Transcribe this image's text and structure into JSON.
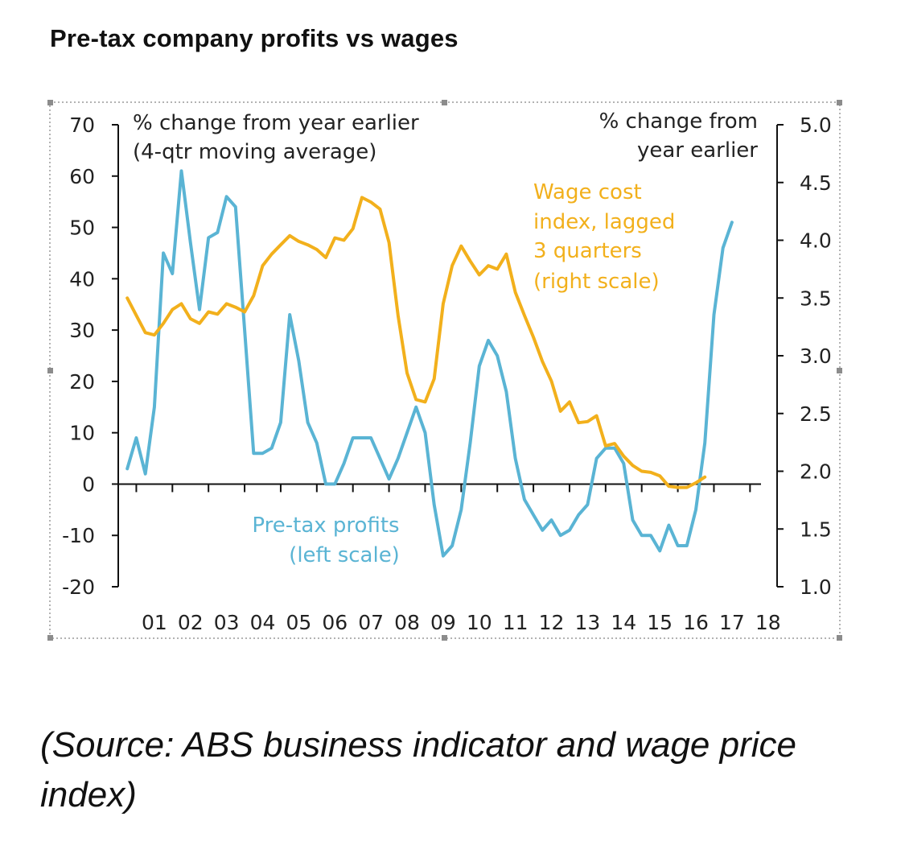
{
  "title": "Pre-tax company profits vs wages",
  "source": "(Source: ABS business indicator and wage price index)",
  "chart_data": {
    "type": "line",
    "left_axis": {
      "note_line1": "% change from year earlier",
      "note_line2": "(4-qtr moving average)",
      "ylim": [
        -20,
        70
      ],
      "ticks": [
        "70",
        "60",
        "50",
        "40",
        "30",
        "20",
        "10",
        "0",
        "-10",
        "-20"
      ]
    },
    "right_axis": {
      "note_line1": "% change from",
      "note_line2": "year earlier",
      "ylim": [
        1.0,
        5.0
      ],
      "ticks": [
        "5.0",
        "4.5",
        "4.0",
        "3.5",
        "3.0",
        "2.5",
        "2.0",
        "1.5",
        "1.0"
      ]
    },
    "x_tick_labels": [
      "01",
      "02",
      "03",
      "04",
      "05",
      "06",
      "07",
      "08",
      "09",
      "10",
      "11",
      "12",
      "13",
      "14",
      "15",
      "16",
      "17",
      "18"
    ],
    "series": [
      {
        "id": "profits",
        "label_line1": "Pre-tax profits",
        "label_line2": "(left scale)",
        "color": "#5ab4d4",
        "axis": "left",
        "points": [
          [
            2000.75,
            3
          ],
          [
            2001.0,
            9
          ],
          [
            2001.25,
            2
          ],
          [
            2001.5,
            15
          ],
          [
            2001.75,
            45
          ],
          [
            2002.0,
            41
          ],
          [
            2002.25,
            61
          ],
          [
            2002.5,
            47
          ],
          [
            2002.75,
            34
          ],
          [
            2003.0,
            48
          ],
          [
            2003.25,
            49
          ],
          [
            2003.5,
            56
          ],
          [
            2003.75,
            54
          ],
          [
            2004.0,
            30
          ],
          [
            2004.25,
            6
          ],
          [
            2004.5,
            6
          ],
          [
            2004.75,
            7
          ],
          [
            2005.0,
            12
          ],
          [
            2005.25,
            33
          ],
          [
            2005.5,
            24
          ],
          [
            2005.75,
            12
          ],
          [
            2006.0,
            8
          ],
          [
            2006.25,
            0
          ],
          [
            2006.5,
            0
          ],
          [
            2006.75,
            4
          ],
          [
            2007.0,
            9
          ],
          [
            2007.25,
            9
          ],
          [
            2007.5,
            9
          ],
          [
            2007.75,
            5
          ],
          [
            2008.0,
            1
          ],
          [
            2008.25,
            5
          ],
          [
            2008.5,
            10
          ],
          [
            2008.75,
            15
          ],
          [
            2009.0,
            10
          ],
          [
            2009.25,
            -4
          ],
          [
            2009.5,
            -14
          ],
          [
            2009.75,
            -12
          ],
          [
            2010.0,
            -5
          ],
          [
            2010.25,
            8
          ],
          [
            2010.5,
            23
          ],
          [
            2010.75,
            28
          ],
          [
            2011.0,
            25
          ],
          [
            2011.25,
            18
          ],
          [
            2011.5,
            5
          ],
          [
            2011.75,
            -3
          ],
          [
            2012.0,
            -6
          ],
          [
            2012.25,
            -9
          ],
          [
            2012.5,
            -7
          ],
          [
            2012.75,
            -10
          ],
          [
            2013.0,
            -9
          ],
          [
            2013.25,
            -6
          ],
          [
            2013.5,
            -4
          ],
          [
            2013.75,
            5
          ],
          [
            2014.0,
            7
          ],
          [
            2014.25,
            7
          ],
          [
            2014.5,
            4
          ],
          [
            2014.75,
            -7
          ],
          [
            2015.0,
            -10
          ],
          [
            2015.25,
            -10
          ],
          [
            2015.5,
            -13
          ],
          [
            2015.75,
            -8
          ],
          [
            2016.0,
            -12
          ],
          [
            2016.25,
            -12
          ],
          [
            2016.5,
            -5
          ],
          [
            2016.75,
            8
          ],
          [
            2017.0,
            33
          ],
          [
            2017.25,
            46
          ],
          [
            2017.5,
            51
          ]
        ]
      },
      {
        "id": "wages",
        "label_line1": "Wage cost",
        "label_line2": "index, lagged",
        "label_line3": "3 quarters",
        "label_line4": "(right scale)",
        "color": "#f2b01c",
        "axis": "right",
        "points": [
          [
            2000.75,
            3.5
          ],
          [
            2001.0,
            3.35
          ],
          [
            2001.25,
            3.2
          ],
          [
            2001.5,
            3.18
          ],
          [
            2001.75,
            3.28
          ],
          [
            2002.0,
            3.4
          ],
          [
            2002.25,
            3.45
          ],
          [
            2002.5,
            3.32
          ],
          [
            2002.75,
            3.28
          ],
          [
            2003.0,
            3.38
          ],
          [
            2003.25,
            3.36
          ],
          [
            2003.5,
            3.45
          ],
          [
            2003.75,
            3.42
          ],
          [
            2004.0,
            3.38
          ],
          [
            2004.25,
            3.52
          ],
          [
            2004.5,
            3.78
          ],
          [
            2004.75,
            3.88
          ],
          [
            2005.0,
            3.96
          ],
          [
            2005.25,
            4.04
          ],
          [
            2005.5,
            3.99
          ],
          [
            2005.75,
            3.96
          ],
          [
            2006.0,
            3.92
          ],
          [
            2006.25,
            3.85
          ],
          [
            2006.5,
            4.02
          ],
          [
            2006.75,
            4.0
          ],
          [
            2007.0,
            4.1
          ],
          [
            2007.25,
            4.37
          ],
          [
            2007.5,
            4.33
          ],
          [
            2007.75,
            4.27
          ],
          [
            2008.0,
            3.98
          ],
          [
            2008.25,
            3.35
          ],
          [
            2008.5,
            2.85
          ],
          [
            2008.75,
            2.62
          ],
          [
            2009.0,
            2.6
          ],
          [
            2009.25,
            2.8
          ],
          [
            2009.5,
            3.45
          ],
          [
            2009.75,
            3.78
          ],
          [
            2010.0,
            3.95
          ],
          [
            2010.25,
            3.82
          ],
          [
            2010.5,
            3.7
          ],
          [
            2010.75,
            3.78
          ],
          [
            2011.0,
            3.75
          ],
          [
            2011.25,
            3.88
          ],
          [
            2011.5,
            3.55
          ],
          [
            2011.75,
            3.35
          ],
          [
            2012.0,
            3.16
          ],
          [
            2012.25,
            2.95
          ],
          [
            2012.5,
            2.78
          ],
          [
            2012.75,
            2.52
          ],
          [
            2013.0,
            2.6
          ],
          [
            2013.25,
            2.42
          ],
          [
            2013.5,
            2.43
          ],
          [
            2013.75,
            2.48
          ],
          [
            2014.0,
            2.22
          ],
          [
            2014.25,
            2.24
          ],
          [
            2014.5,
            2.13
          ],
          [
            2014.75,
            2.05
          ],
          [
            2015.0,
            2.0
          ],
          [
            2015.25,
            1.99
          ],
          [
            2015.5,
            1.96
          ],
          [
            2015.75,
            1.87
          ],
          [
            2016.0,
            1.86
          ],
          [
            2016.25,
            1.86
          ],
          [
            2016.5,
            1.9
          ],
          [
            2016.75,
            1.95
          ]
        ]
      }
    ],
    "grid": false
  }
}
